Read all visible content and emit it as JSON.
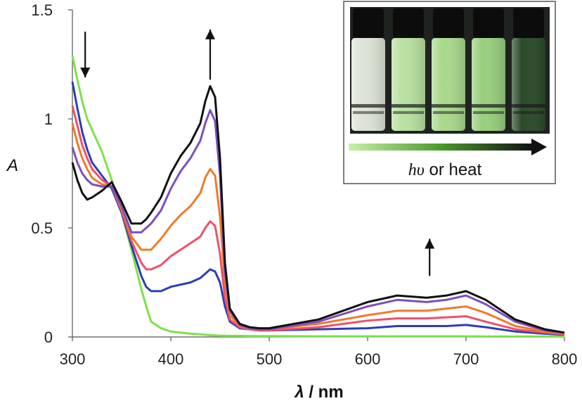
{
  "chart_data": {
    "type": "line",
    "title": "",
    "xlabel": "λ / nm",
    "xlabel_symbol": "λ",
    "xlabel_unit": " / nm",
    "ylabel": "A",
    "xlim": [
      300,
      800
    ],
    "ylim": [
      0,
      1.5
    ],
    "x_ticks": [
      300,
      400,
      500,
      600,
      700,
      800
    ],
    "y_ticks": [
      0,
      0.5,
      1,
      1.5
    ],
    "y_tick_labels": [
      "0",
      "0.5",
      "1",
      "1.5"
    ],
    "grid": false,
    "legend": "none",
    "x": [
      300,
      305,
      310,
      315,
      320,
      330,
      340,
      350,
      360,
      370,
      375,
      380,
      390,
      400,
      410,
      420,
      430,
      435,
      440,
      445,
      450,
      455,
      460,
      470,
      480,
      490,
      500,
      550,
      600,
      630,
      660,
      680,
      700,
      720,
      750,
      780,
      800
    ],
    "series": [
      {
        "color": "#7ee04c",
        "values": [
          1.29,
          1.18,
          1.08,
          1.0,
          0.95,
          0.85,
          0.72,
          0.57,
          0.4,
          0.22,
          0.14,
          0.07,
          0.04,
          0.025,
          0.02,
          0.015,
          0.012,
          0.01,
          0.008,
          0.007,
          0.006,
          0.005,
          0.005,
          0.005,
          0.004,
          0.004,
          0.004,
          0.003,
          0.003,
          0.003,
          0.003,
          0.003,
          0.003,
          0.002,
          0.002,
          0.002,
          0.002
        ]
      },
      {
        "color": "#2a3fb5",
        "values": [
          1.17,
          1.05,
          0.94,
          0.86,
          0.8,
          0.74,
          0.68,
          0.57,
          0.42,
          0.28,
          0.23,
          0.21,
          0.21,
          0.23,
          0.24,
          0.25,
          0.27,
          0.29,
          0.31,
          0.3,
          0.25,
          0.14,
          0.07,
          0.04,
          0.035,
          0.03,
          0.03,
          0.035,
          0.04,
          0.05,
          0.05,
          0.05,
          0.055,
          0.045,
          0.025,
          0.015,
          0.01
        ]
      },
      {
        "color": "#f0506a",
        "values": [
          1.06,
          0.97,
          0.88,
          0.82,
          0.77,
          0.72,
          0.69,
          0.58,
          0.44,
          0.34,
          0.31,
          0.31,
          0.33,
          0.37,
          0.4,
          0.43,
          0.46,
          0.5,
          0.53,
          0.51,
          0.38,
          0.18,
          0.08,
          0.045,
          0.035,
          0.03,
          0.03,
          0.045,
          0.075,
          0.085,
          0.085,
          0.09,
          0.095,
          0.07,
          0.035,
          0.02,
          0.012
        ]
      },
      {
        "color": "#f07a2a",
        "values": [
          0.98,
          0.89,
          0.82,
          0.77,
          0.73,
          0.7,
          0.69,
          0.59,
          0.46,
          0.4,
          0.4,
          0.4,
          0.45,
          0.51,
          0.56,
          0.6,
          0.66,
          0.73,
          0.77,
          0.74,
          0.55,
          0.25,
          0.1,
          0.05,
          0.04,
          0.035,
          0.035,
          0.06,
          0.1,
          0.12,
          0.12,
          0.13,
          0.14,
          0.11,
          0.05,
          0.025,
          0.015
        ]
      },
      {
        "color": "#7b4fbf",
        "values": [
          0.87,
          0.8,
          0.75,
          0.72,
          0.7,
          0.69,
          0.69,
          0.6,
          0.48,
          0.48,
          0.5,
          0.52,
          0.58,
          0.68,
          0.76,
          0.82,
          0.9,
          0.98,
          1.04,
          0.99,
          0.74,
          0.3,
          0.12,
          0.055,
          0.04,
          0.035,
          0.035,
          0.07,
          0.14,
          0.17,
          0.16,
          0.17,
          0.19,
          0.15,
          0.07,
          0.03,
          0.018
        ]
      },
      {
        "color": "#111111",
        "values": [
          0.8,
          0.72,
          0.66,
          0.63,
          0.64,
          0.67,
          0.71,
          0.62,
          0.52,
          0.52,
          0.54,
          0.57,
          0.64,
          0.75,
          0.83,
          0.89,
          0.98,
          1.08,
          1.15,
          1.1,
          0.82,
          0.34,
          0.13,
          0.06,
          0.045,
          0.04,
          0.04,
          0.08,
          0.16,
          0.19,
          0.18,
          0.19,
          0.21,
          0.17,
          0.08,
          0.035,
          0.02
        ]
      }
    ],
    "annotations": [
      {
        "kind": "arrow-down",
        "x": 313,
        "y_from": 1.4,
        "y_to": 1.19
      },
      {
        "kind": "arrow-up",
        "x": 440,
        "y_from": 1.18,
        "y_to": 1.41
      },
      {
        "kind": "arrow-up",
        "x": 663,
        "y_from": 0.28,
        "y_to": 0.45
      }
    ],
    "inset": {
      "caption_symbol": "hυ",
      "caption_text": " or heat",
      "vial_colors": [
        "#dde4d6",
        "#b8e0a0",
        "#a9d98c",
        "#98cf7e",
        "#2b4a2a"
      ]
    }
  }
}
